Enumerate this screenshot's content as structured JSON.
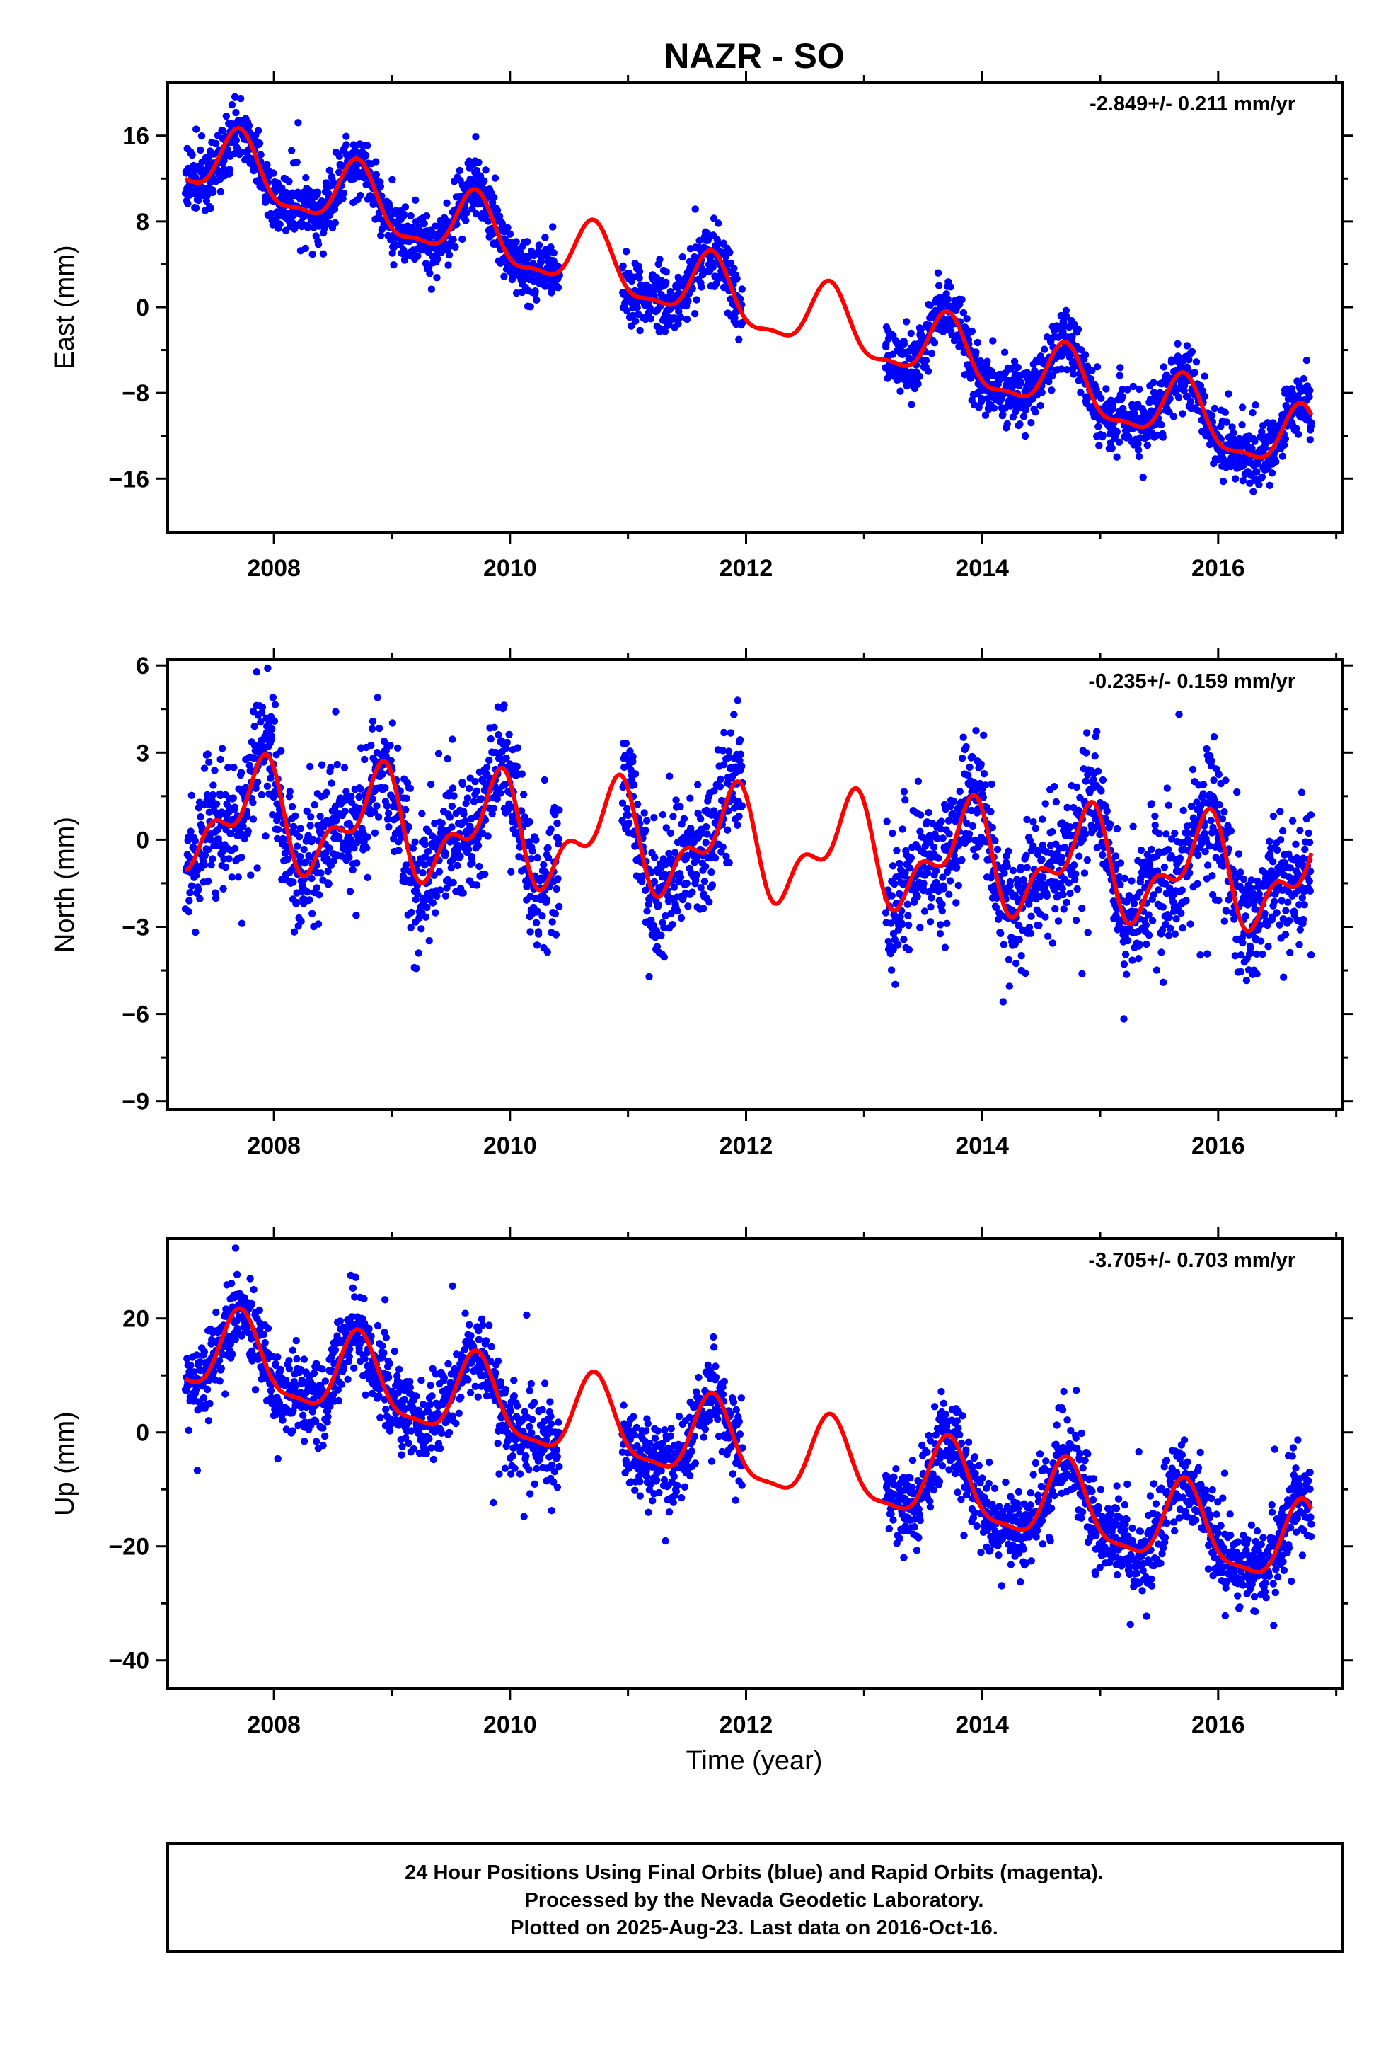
{
  "title": "NAZR - SO",
  "xlabel": "Time (year)",
  "footer": {
    "line1": "24 Hour Positions Using Final Orbits (blue) and Rapid Orbits (magenta).",
    "line2": "Processed by the Nevada Geodetic Laboratory.",
    "line3": "Plotted on 2025-Aug-23. Last data on 2016-Oct-16."
  },
  "colors": {
    "final_orbits": "#0000ff",
    "model": "#ff0000",
    "frame": "#000000"
  },
  "chart_data": [
    {
      "type": "scatter",
      "ylabel": "East (mm)",
      "rate_label": "-2.849+/- 0.211 mm/yr",
      "xlim": [
        2007.1,
        2017.05
      ],
      "ylim": [
        -21,
        21
      ],
      "xticks": [
        2008,
        2010,
        2012,
        2014,
        2016
      ],
      "yticks": [
        16,
        8,
        0,
        -8,
        -16
      ],
      "data_segments": [
        [
          2007.25,
          2010.42
        ],
        [
          2010.95,
          2011.97
        ],
        [
          2013.18,
          2016.79
        ]
      ],
      "model": {
        "year0": 2007.25,
        "rate_mm_per_yr": -2.849,
        "offset_mm": 14.0,
        "annual_amp_mm": 3.0,
        "annual_phase_deg": -75,
        "semiannual_amp_mm": 1.0,
        "semiannual_phase_deg": 120
      },
      "scatter_sigma_mm": 1.4,
      "points_per_year": 320,
      "seed": 11
    },
    {
      "type": "scatter",
      "ylabel": "North (mm)",
      "rate_label": "-0.235+/- 0.159 mm/yr",
      "xlim": [
        2007.1,
        2017.05
      ],
      "ylim": [
        -9.3,
        6.2
      ],
      "xticks": [
        2008,
        2010,
        2012,
        2014,
        2016
      ],
      "yticks": [
        6,
        3,
        0,
        -3,
        -6,
        -9
      ],
      "data_segments": [
        [
          2007.25,
          2010.42
        ],
        [
          2010.95,
          2011.97
        ],
        [
          2013.18,
          2016.79
        ]
      ],
      "model": {
        "year0": 2007.25,
        "rate_mm_per_yr": -0.235,
        "offset_mm": 0.9,
        "annual_amp_mm": 1.5,
        "annual_phase_deg": -130,
        "semiannual_amp_mm": 0.9,
        "semiannual_phase_deg": -60
      },
      "scatter_sigma_mm": 1.05,
      "points_per_year": 320,
      "seed": 23
    },
    {
      "type": "scatter",
      "ylabel": "Up (mm)",
      "rate_label": "-3.705+/- 0.703 mm/yr",
      "xlim": [
        2007.1,
        2017.05
      ],
      "ylim": [
        -45,
        34
      ],
      "xticks": [
        2008,
        2010,
        2012,
        2014,
        2016
      ],
      "yticks": [
        20,
        0,
        -20,
        -40
      ],
      "data_segments": [
        [
          2007.25,
          2010.42
        ],
        [
          2010.95,
          2011.97
        ],
        [
          2013.18,
          2016.79
        ]
      ],
      "model": {
        "year0": 2007.25,
        "rate_mm_per_yr": -3.705,
        "offset_mm": 14.5,
        "annual_amp_mm": 7.0,
        "annual_phase_deg": -80,
        "semiannual_amp_mm": 2.0,
        "semiannual_phase_deg": 120
      },
      "scatter_sigma_mm": 3.6,
      "points_per_year": 320,
      "seed": 37
    }
  ]
}
